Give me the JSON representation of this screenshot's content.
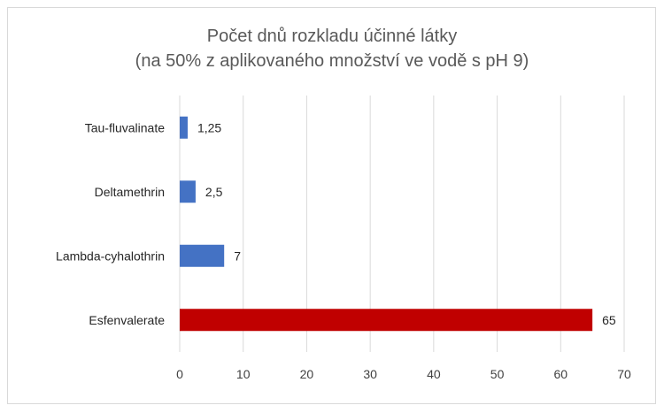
{
  "chart_data": {
    "type": "bar",
    "orientation": "horizontal",
    "title": "Počet dnů rozkladu účinné látky",
    "subtitle": "(na 50% z aplikovaného množství ve vodě s pH 9)",
    "categories": [
      "Tau-fluvalinate",
      "Deltamethrin",
      "Lambda-cyhalothrin",
      "Esfenvalerate"
    ],
    "values": [
      1.25,
      2.5,
      7,
      65
    ],
    "value_labels": [
      "1,25",
      "2,5",
      "7",
      "65"
    ],
    "bar_colors": [
      "#4472c4",
      "#4472c4",
      "#4472c4",
      "#c00000"
    ],
    "xlim": [
      0,
      70
    ],
    "xticks": [
      0,
      10,
      20,
      30,
      40,
      50,
      60,
      70
    ],
    "grid": "vertical",
    "xlabel": "",
    "ylabel": ""
  }
}
